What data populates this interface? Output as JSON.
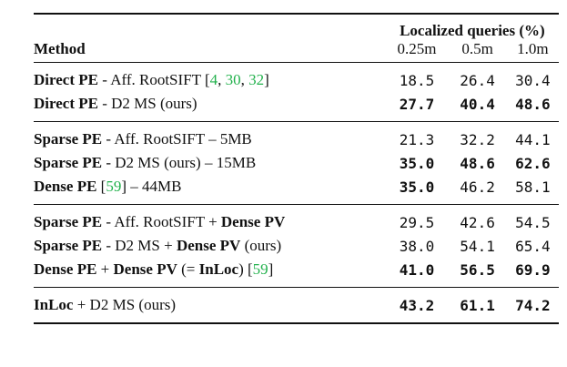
{
  "header": {
    "group_label": "Localized queries (%)",
    "method_label": "Method",
    "columns": [
      "0.25m",
      "0.5m",
      "1.0m"
    ]
  },
  "rows": [
    {
      "parts": [
        {
          "t": "Direct PE",
          "b": true
        },
        {
          "t": " - Aff. RootSIFT ["
        },
        {
          "t": "4",
          "ref": true
        },
        {
          "t": ", "
        },
        {
          "t": "30",
          "ref": true
        },
        {
          "t": ", "
        },
        {
          "t": "32",
          "ref": true
        },
        {
          "t": "]"
        }
      ],
      "values": [
        "18.5",
        "26.4",
        "30.4"
      ],
      "bold": [
        false,
        false,
        false
      ]
    },
    {
      "parts": [
        {
          "t": "Direct PE",
          "b": true
        },
        {
          "t": " - D2 MS (ours)"
        }
      ],
      "values": [
        "27.7",
        "40.4",
        "48.6"
      ],
      "bold": [
        true,
        true,
        true
      ]
    },
    {
      "parts": [
        {
          "t": "Sparse PE",
          "b": true
        },
        {
          "t": " - Aff. RootSIFT – 5MB"
        }
      ],
      "values": [
        "21.3",
        "32.2",
        "44.1"
      ],
      "bold": [
        false,
        false,
        false
      ]
    },
    {
      "parts": [
        {
          "t": "Sparse PE",
          "b": true
        },
        {
          "t": " - D2 MS (ours) – 15MB"
        }
      ],
      "values": [
        "35.0",
        "48.6",
        "62.6"
      ],
      "bold": [
        true,
        true,
        true
      ]
    },
    {
      "parts": [
        {
          "t": "Dense PE",
          "b": true
        },
        {
          "t": " ["
        },
        {
          "t": "59",
          "ref": true
        },
        {
          "t": "] – 44MB"
        }
      ],
      "values": [
        "35.0",
        "46.2",
        "58.1"
      ],
      "bold": [
        true,
        false,
        false
      ]
    },
    {
      "parts": [
        {
          "t": "Sparse PE",
          "b": true
        },
        {
          "t": " - Aff. RootSIFT + "
        },
        {
          "t": "Dense PV",
          "b": true
        }
      ],
      "values": [
        "29.5",
        "42.6",
        "54.5"
      ],
      "bold": [
        false,
        false,
        false
      ]
    },
    {
      "parts": [
        {
          "t": "Sparse PE",
          "b": true
        },
        {
          "t": " - D2 MS + "
        },
        {
          "t": "Dense PV",
          "b": true
        },
        {
          "t": " (ours)"
        }
      ],
      "values": [
        "38.0",
        "54.1",
        "65.4"
      ],
      "bold": [
        false,
        false,
        false
      ]
    },
    {
      "parts": [
        {
          "t": "Dense PE",
          "b": true
        },
        {
          "t": " + "
        },
        {
          "t": "Dense PV",
          "b": true
        },
        {
          "t": " (= "
        },
        {
          "t": "InLoc",
          "b": true
        },
        {
          "t": ") ["
        },
        {
          "t": "59",
          "ref": true
        },
        {
          "t": "]"
        }
      ],
      "values": [
        "41.0",
        "56.5",
        "69.9"
      ],
      "bold": [
        true,
        true,
        true
      ]
    },
    {
      "parts": [
        {
          "t": "InLoc",
          "b": true
        },
        {
          "t": " + D2 MS (ours)"
        }
      ],
      "values": [
        "43.2",
        "61.1",
        "74.2"
      ],
      "bold": [
        true,
        true,
        true
      ]
    }
  ],
  "groups": [
    [
      0,
      1
    ],
    [
      2,
      3,
      4
    ],
    [
      5,
      6,
      7
    ],
    [
      8
    ]
  ],
  "colors": {
    "reference": "#22b14c",
    "text": "#111111"
  }
}
